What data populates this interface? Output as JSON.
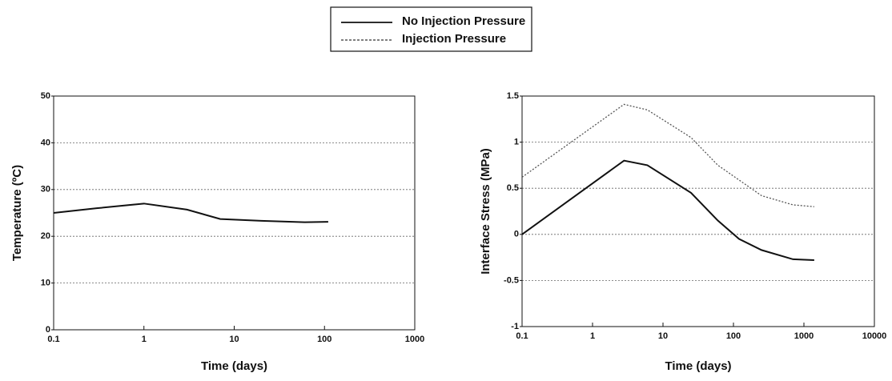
{
  "chart_data": [
    {
      "type": "line",
      "xlabel": "Time (days)",
      "ylabel": "Temperature (ºC)",
      "xscale": "log",
      "xlim": [
        0.1,
        1000
      ],
      "xticks": [
        0.1,
        1,
        10,
        100,
        1000
      ],
      "ylim": [
        0,
        50
      ],
      "yticks": [
        0,
        10,
        20,
        30,
        40,
        50
      ],
      "grid": true,
      "series": [
        {
          "color": "#111111",
          "style": "solid",
          "x": [
            0.1,
            0.3,
            1,
            3,
            7,
            20,
            60,
            110
          ],
          "values": [
            25,
            26,
            27,
            25.7,
            23.7,
            23.3,
            23,
            23.1
          ]
        }
      ]
    },
    {
      "type": "line",
      "xlabel": "Time (days)",
      "ylabel": "Interface Stress (MPa)",
      "xscale": "log",
      "xlim": [
        0.1,
        10000
      ],
      "xticks": [
        0.1,
        1,
        10,
        100,
        1000,
        10000
      ],
      "ylim": [
        -1,
        1.5
      ],
      "yticks": [
        -1,
        -0.5,
        0,
        0.5,
        1,
        1.5
      ],
      "grid": true,
      "series": [
        {
          "name": "No Injection Pressure",
          "color": "#111111",
          "style": "solid",
          "x": [
            0.1,
            2.8,
            6,
            25,
            60,
            120,
            250,
            700,
            1400
          ],
          "values": [
            0,
            0.8,
            0.75,
            0.45,
            0.15,
            -0.05,
            -0.17,
            -0.27,
            -0.28
          ]
        },
        {
          "name": "Injection Pressure",
          "color": "#555555",
          "style": "dotted",
          "x": [
            0.1,
            2.8,
            6,
            25,
            60,
            250,
            700,
            1400
          ],
          "values": [
            0.62,
            1.41,
            1.35,
            1.05,
            0.75,
            0.42,
            0.32,
            0.3
          ]
        }
      ]
    }
  ]
}
